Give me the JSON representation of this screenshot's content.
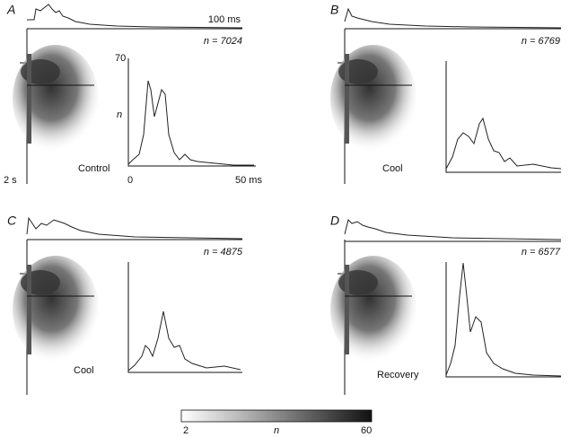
{
  "panels": [
    {
      "letter": "A",
      "n_label": "n = 7024",
      "condition": "Control",
      "time_scale": "100 ms",
      "y_axis_top": "70",
      "y_axis_label": "n",
      "raster_scale": "2 s",
      "x_axis_start": "0",
      "x_axis_end": "50 ms"
    },
    {
      "letter": "B",
      "n_label": "n = 6769",
      "condition": "Cool"
    },
    {
      "letter": "C",
      "n_label": "n = 4875",
      "condition": "Cool"
    },
    {
      "letter": "D",
      "n_label": "n = 6577",
      "condition": "Recovery"
    }
  ],
  "colorbar": {
    "min": "2",
    "label": "n",
    "max": "60"
  }
}
